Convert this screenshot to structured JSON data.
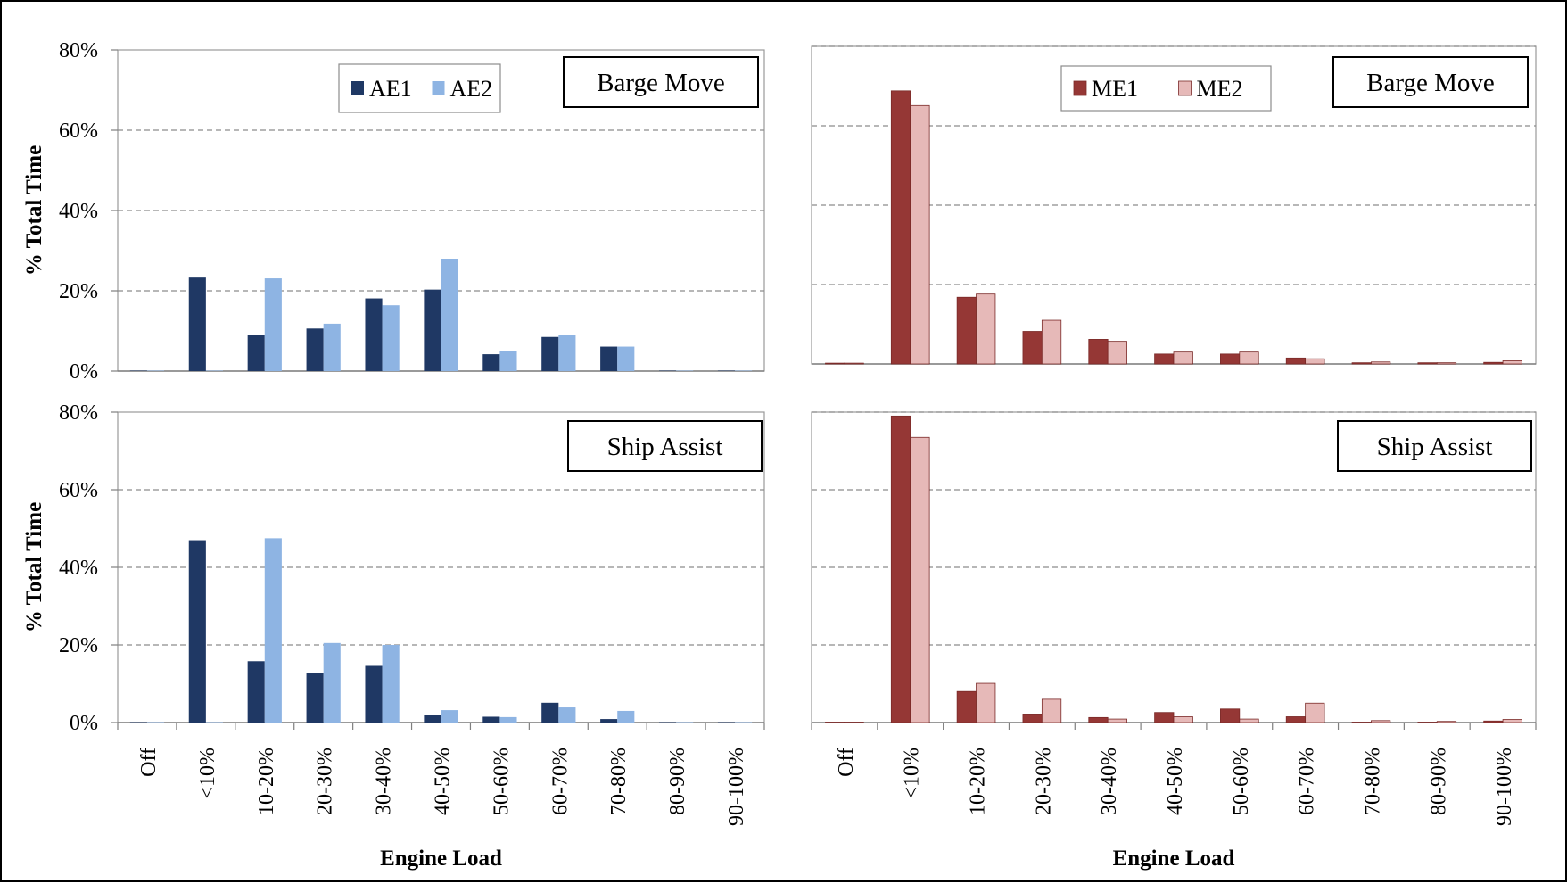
{
  "chart_data": [
    {
      "type": "bar",
      "panel": "top-left",
      "title": "Barge Move",
      "ylabel": "% Total Time",
      "xlabel": "",
      "ylim": [
        0,
        80
      ],
      "yticks": [
        "0%",
        "20%",
        "40%",
        "60%",
        "80%"
      ],
      "grid": true,
      "legend": "top-center",
      "categories": [
        "Off",
        "<10%",
        "10-20%",
        "20-30%",
        "30-40%",
        "40-50%",
        "50-60%",
        "60-70%",
        "70-80%",
        "80-90%",
        "90-100%"
      ],
      "series": [
        {
          "name": "AE1",
          "color": "#1f3864",
          "values": [
            0,
            23.3,
            9.0,
            10.6,
            18.1,
            20.3,
            4.2,
            8.5,
            6.1,
            0.1,
            0
          ]
        },
        {
          "name": "AE2",
          "color": "#8eb4e3",
          "values": [
            0,
            0.1,
            23.1,
            11.8,
            16.4,
            28.0,
            5.0,
            9.0,
            6.1,
            0,
            0
          ]
        }
      ]
    },
    {
      "type": "bar",
      "panel": "top-right",
      "title": "Barge Move",
      "ylabel": "",
      "xlabel": "",
      "ylim": [
        0,
        80
      ],
      "grid": true,
      "legend": "top-center",
      "categories": [
        "Off",
        "<10%",
        "10-20%",
        "20-30%",
        "30-40%",
        "40-50%",
        "50-60%",
        "60-70%",
        "70-80%",
        "80-90%",
        "90-100%"
      ],
      "series": [
        {
          "name": "ME1",
          "color": "#953735",
          "values": [
            0.2,
            68.8,
            16.8,
            8.2,
            6.2,
            2.5,
            2.5,
            1.5,
            0.3,
            0.3,
            0.4
          ]
        },
        {
          "name": "ME2",
          "color": "#e6b9b8",
          "values": [
            0.2,
            65.1,
            17.6,
            11.0,
            5.7,
            3.0,
            3.0,
            1.3,
            0.5,
            0.3,
            0.8
          ]
        }
      ]
    },
    {
      "type": "bar",
      "panel": "bottom-left",
      "title": "Ship Assist",
      "ylabel": "% Total Time",
      "xlabel": "Engine Load",
      "ylim": [
        0,
        80
      ],
      "yticks": [
        "0%",
        "20%",
        "40%",
        "60%",
        "80%"
      ],
      "grid": true,
      "categories": [
        "Off",
        "<10%",
        "10-20%",
        "20-30%",
        "30-40%",
        "40-50%",
        "50-60%",
        "60-70%",
        "70-80%",
        "80-90%",
        "90-100%"
      ],
      "series": [
        {
          "name": "AE1",
          "color": "#1f3864",
          "values": [
            0,
            47.0,
            15.8,
            12.8,
            14.6,
            2.0,
            1.5,
            5.1,
            0.9,
            0.1,
            0
          ]
        },
        {
          "name": "AE2",
          "color": "#8eb4e3",
          "values": [
            0,
            0.1,
            47.5,
            20.5,
            20.0,
            3.2,
            1.4,
            3.9,
            3.0,
            0,
            0
          ]
        }
      ]
    },
    {
      "type": "bar",
      "panel": "bottom-right",
      "title": "Ship Assist",
      "ylabel": "",
      "xlabel": "Engine Load",
      "ylim": [
        0,
        80
      ],
      "grid": true,
      "categories": [
        "Off",
        "<10%",
        "10-20%",
        "20-30%",
        "30-40%",
        "40-50%",
        "50-60%",
        "60-70%",
        "70-80%",
        "80-90%",
        "90-100%"
      ],
      "series": [
        {
          "name": "ME1",
          "color": "#953735",
          "values": [
            0.1,
            79.0,
            8.0,
            2.2,
            1.3,
            2.6,
            3.5,
            1.5,
            0.1,
            0.1,
            0.4
          ]
        },
        {
          "name": "ME2",
          "color": "#e6b9b8",
          "values": [
            0.1,
            73.5,
            10.1,
            6.0,
            0.9,
            1.5,
            0.9,
            5.0,
            0.5,
            0.3,
            0.8
          ]
        }
      ]
    }
  ]
}
